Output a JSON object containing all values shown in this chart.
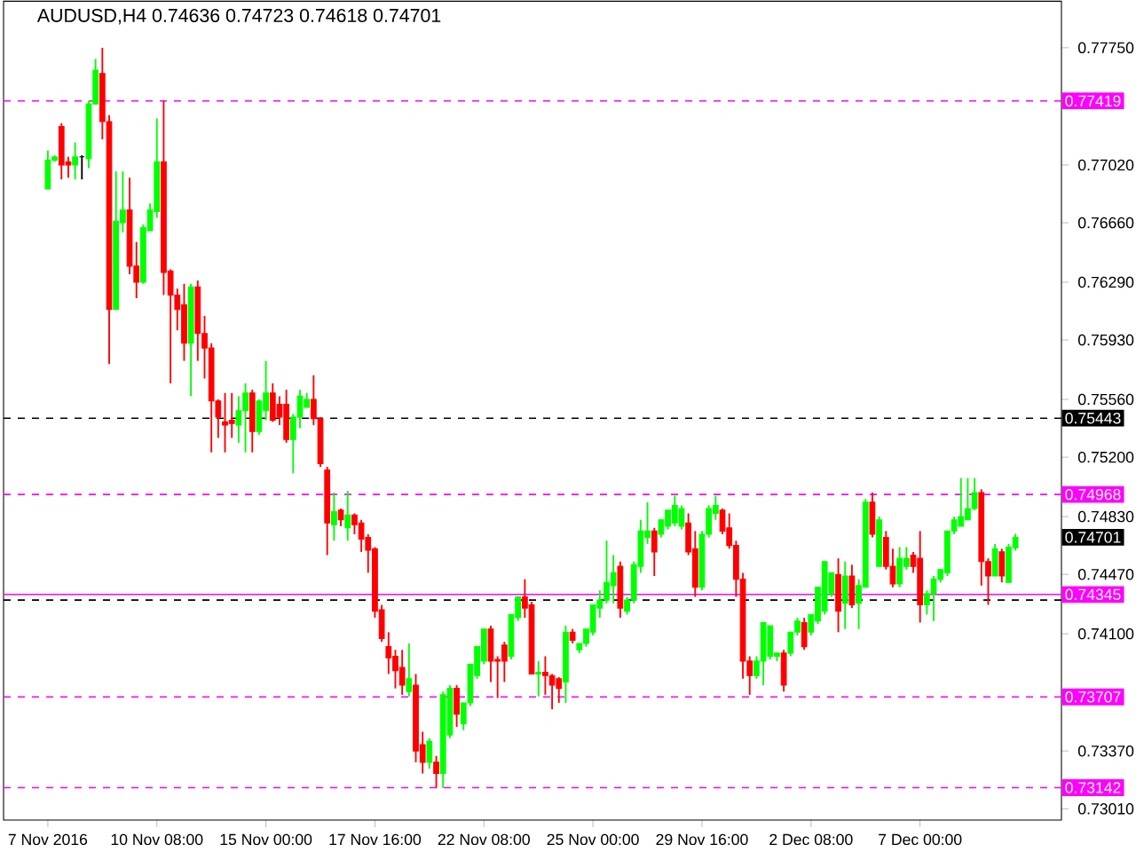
{
  "chart_data": {
    "type": "candlestick",
    "title": "AUDUSD,H4 0.74636 0.74723 0.74618 0.74701",
    "categories": [
      "7 Nov 2016",
      null,
      null,
      null,
      null,
      null,
      null,
      null,
      null,
      null,
      null,
      null,
      null,
      null,
      null,
      null,
      "10 Nov 08:00",
      null,
      null,
      null,
      null,
      null,
      null,
      null,
      null,
      null,
      null,
      null,
      null,
      null,
      null,
      null,
      "15 Nov 00:00",
      null,
      null,
      null,
      null,
      null,
      null,
      null,
      null,
      null,
      null,
      null,
      null,
      null,
      null,
      null,
      "17 Nov 16:00",
      null,
      null,
      null,
      null,
      null,
      null,
      null,
      null,
      null,
      null,
      null,
      null,
      null,
      null,
      null,
      "22 Nov 08:00",
      null,
      null,
      null,
      null,
      null,
      null,
      null,
      null,
      null,
      null,
      null,
      null,
      null,
      null,
      null,
      "25 Nov 00:00",
      null,
      null,
      null,
      null,
      null,
      null,
      null,
      null,
      null,
      null,
      null,
      null,
      null,
      null,
      null,
      "29 Nov 16:00",
      null,
      null,
      null,
      null,
      null,
      null,
      null,
      null,
      null,
      null,
      null,
      null,
      null,
      null,
      null,
      "2 Dec 08:00",
      null,
      null,
      null,
      null,
      null,
      null,
      null,
      null,
      null,
      null,
      null,
      null,
      null,
      null,
      null,
      "7 Dec 00:00",
      null,
      null,
      null,
      null,
      null,
      null,
      null,
      null,
      null,
      null,
      null,
      null,
      null,
      null
    ],
    "ohlc": [
      [
        0.7687,
        0.7711,
        0.7687,
        0.7705
      ],
      [
        0.7705,
        0.7708,
        0.7704,
        0.7707
      ],
      [
        0.7726,
        0.7728,
        0.7693,
        0.7702
      ],
      [
        0.7704,
        0.7707,
        0.7694,
        0.7702
      ],
      [
        0.7702,
        0.7716,
        0.7693,
        0.7707
      ],
      [
        0.7707,
        0.7708,
        0.7693,
        0.7707
      ],
      [
        0.7706,
        0.7742,
        0.77,
        0.774
      ],
      [
        0.774,
        0.7768,
        0.774,
        0.7761
      ],
      [
        0.7759,
        0.7775,
        0.7718,
        0.7729
      ],
      [
        0.7729,
        0.7733,
        0.7578,
        0.7612
      ],
      [
        0.7612,
        0.7698,
        0.7612,
        0.7667
      ],
      [
        0.7666,
        0.7698,
        0.766,
        0.7674
      ],
      [
        0.7674,
        0.7694,
        0.7634,
        0.7639
      ],
      [
        0.7639,
        0.7654,
        0.7619,
        0.7629
      ],
      [
        0.7629,
        0.7665,
        0.7628,
        0.7663
      ],
      [
        0.7661,
        0.7678,
        0.7661,
        0.7674
      ],
      [
        0.7673,
        0.7731,
        0.7669,
        0.7704
      ],
      [
        0.7704,
        0.7742,
        0.7621,
        0.7635
      ],
      [
        0.7636,
        0.7637,
        0.7566,
        0.7621
      ],
      [
        0.7621,
        0.7625,
        0.7599,
        0.7612
      ],
      [
        0.7615,
        0.7628,
        0.758,
        0.7591
      ],
      [
        0.7591,
        0.7628,
        0.7558,
        0.7626
      ],
      [
        0.7626,
        0.763,
        0.758,
        0.7597
      ],
      [
        0.7597,
        0.7608,
        0.7569,
        0.7588
      ],
      [
        0.7588,
        0.7591,
        0.7523,
        0.7555
      ],
      [
        0.7555,
        0.7556,
        0.7532,
        0.7545
      ],
      [
        0.7542,
        0.756,
        0.7523,
        0.754
      ],
      [
        0.7543,
        0.756,
        0.7532,
        0.7541
      ],
      [
        0.754,
        0.7558,
        0.7529,
        0.7549
      ],
      [
        0.7549,
        0.7566,
        0.7523,
        0.756
      ],
      [
        0.756,
        0.7562,
        0.7523,
        0.7536
      ],
      [
        0.7536,
        0.7556,
        0.7534,
        0.7555
      ],
      [
        0.7549,
        0.758,
        0.7543,
        0.756
      ],
      [
        0.756,
        0.7566,
        0.7542,
        0.7543
      ],
      [
        0.7553,
        0.7558,
        0.754,
        0.7545
      ],
      [
        0.7553,
        0.7562,
        0.7529,
        0.7531
      ],
      [
        0.7531,
        0.7547,
        0.751,
        0.7545
      ],
      [
        0.7545,
        0.7562,
        0.7538,
        0.7558
      ],
      [
        0.7551,
        0.756,
        0.7551,
        0.7556
      ],
      [
        0.7556,
        0.7571,
        0.754,
        0.7544
      ],
      [
        0.7544,
        0.7545,
        0.7514,
        0.7516
      ],
      [
        0.7512,
        0.7514,
        0.7459,
        0.7479
      ],
      [
        0.7478,
        0.7498,
        0.7468,
        0.7486
      ],
      [
        0.7487,
        0.7488,
        0.7477,
        0.7481
      ],
      [
        0.7476,
        0.7499,
        0.7468,
        0.7484
      ],
      [
        0.7484,
        0.7485,
        0.7472,
        0.7478
      ],
      [
        0.7479,
        0.7481,
        0.7461,
        0.7469
      ],
      [
        0.747,
        0.7472,
        0.7448,
        0.7462
      ],
      [
        0.7463,
        0.7464,
        0.742,
        0.7424
      ],
      [
        0.7425,
        0.7428,
        0.7405,
        0.7407
      ],
      [
        0.7402,
        0.7411,
        0.7385,
        0.7395
      ],
      [
        0.7396,
        0.74,
        0.7376,
        0.7387
      ],
      [
        0.7389,
        0.74,
        0.7372,
        0.7378
      ],
      [
        0.7374,
        0.7404,
        0.7371,
        0.7382
      ],
      [
        0.7378,
        0.7385,
        0.733,
        0.7337
      ],
      [
        0.7341,
        0.7349,
        0.7323,
        0.733
      ],
      [
        0.733,
        0.7345,
        0.7326,
        0.7343
      ],
      [
        0.733,
        0.7334,
        0.7314,
        0.7323
      ],
      [
        0.7323,
        0.7374,
        0.7314,
        0.7372
      ],
      [
        0.7347,
        0.7378,
        0.7345,
        0.7376
      ],
      [
        0.7376,
        0.7378,
        0.7352,
        0.736
      ],
      [
        0.7354,
        0.7367,
        0.735,
        0.7367
      ],
      [
        0.7367,
        0.7391,
        0.7365,
        0.7391
      ],
      [
        0.7384,
        0.7402,
        0.7382,
        0.7402
      ],
      [
        0.7393,
        0.7413,
        0.7391,
        0.7413
      ],
      [
        0.7413,
        0.7415,
        0.738,
        0.7393
      ],
      [
        0.7394,
        0.7396,
        0.737,
        0.7393
      ],
      [
        0.7403,
        0.7405,
        0.738,
        0.7393
      ],
      [
        0.7396,
        0.7422,
        0.7394,
        0.7422
      ],
      [
        0.742,
        0.7433,
        0.7418,
        0.7433
      ],
      [
        0.7433,
        0.7444,
        0.742,
        0.7426
      ],
      [
        0.7428,
        0.743,
        0.7385,
        0.7385
      ],
      [
        0.7385,
        0.7393,
        0.7371,
        0.7386
      ],
      [
        0.7386,
        0.7396,
        0.7372,
        0.7384
      ],
      [
        0.7384,
        0.7385,
        0.7363,
        0.7378
      ],
      [
        0.7382,
        0.7383,
        0.7367,
        0.7376
      ],
      [
        0.738,
        0.7415,
        0.7367,
        0.7411
      ],
      [
        0.7411,
        0.7413,
        0.7404,
        0.7406
      ],
      [
        0.74,
        0.7404,
        0.7398,
        0.7404
      ],
      [
        0.7404,
        0.7413,
        0.7402,
        0.7413
      ],
      [
        0.7411,
        0.7428,
        0.7409,
        0.7428
      ],
      [
        0.7426,
        0.7437,
        0.742,
        0.7431
      ],
      [
        0.7431,
        0.7468,
        0.7429,
        0.7442
      ],
      [
        0.744,
        0.7459,
        0.7429,
        0.7448
      ],
      [
        0.7452,
        0.7455,
        0.742,
        0.7426
      ],
      [
        0.7424,
        0.7433,
        0.7422,
        0.7431
      ],
      [
        0.7431,
        0.7455,
        0.7429,
        0.7453
      ],
      [
        0.7452,
        0.7481,
        0.7448,
        0.7474
      ],
      [
        0.747,
        0.7492,
        0.7466,
        0.7474
      ],
      [
        0.7474,
        0.7476,
        0.7446,
        0.7461
      ],
      [
        0.7472,
        0.7481,
        0.747,
        0.7481
      ],
      [
        0.7477,
        0.7487,
        0.7475,
        0.7487
      ],
      [
        0.7479,
        0.7496,
        0.7477,
        0.749
      ],
      [
        0.7477,
        0.749,
        0.7475,
        0.7488
      ],
      [
        0.7479,
        0.7485,
        0.7459,
        0.7461
      ],
      [
        0.7463,
        0.7474,
        0.7433,
        0.7439
      ],
      [
        0.7439,
        0.7474,
        0.7437,
        0.7472
      ],
      [
        0.7472,
        0.749,
        0.747,
        0.7488
      ],
      [
        0.7485,
        0.7496,
        0.7481,
        0.749
      ],
      [
        0.7487,
        0.7488,
        0.7472,
        0.7474
      ],
      [
        0.7476,
        0.7485,
        0.7463,
        0.7465
      ],
      [
        0.7465,
        0.7468,
        0.7433,
        0.7444
      ],
      [
        0.7444,
        0.7448,
        0.7382,
        0.7393
      ],
      [
        0.7393,
        0.7396,
        0.7372,
        0.7384
      ],
      [
        0.7384,
        0.7396,
        0.7382,
        0.7393
      ],
      [
        0.7393,
        0.7417,
        0.7378,
        0.7417
      ],
      [
        0.7396,
        0.7415,
        0.7394,
        0.7415
      ],
      [
        0.7396,
        0.7398,
        0.7393,
        0.7398
      ],
      [
        0.7398,
        0.74,
        0.7374,
        0.7378
      ],
      [
        0.7398,
        0.7411,
        0.7396,
        0.7411
      ],
      [
        0.7411,
        0.742,
        0.7409,
        0.7418
      ],
      [
        0.7417,
        0.742,
        0.74,
        0.7402
      ],
      [
        0.7411,
        0.7422,
        0.7409,
        0.7422
      ],
      [
        0.7418,
        0.7439,
        0.7416,
        0.7439
      ],
      [
        0.7424,
        0.7455,
        0.7422,
        0.7455
      ],
      [
        0.7435,
        0.7448,
        0.7433,
        0.7448
      ],
      [
        0.7447,
        0.7457,
        0.7411,
        0.7424
      ],
      [
        0.7429,
        0.7455,
        0.7413,
        0.7446
      ],
      [
        0.7446,
        0.7453,
        0.7426,
        0.7428
      ],
      [
        0.7429,
        0.7444,
        0.7413,
        0.744
      ],
      [
        0.7439,
        0.7494,
        0.7439,
        0.7492
      ],
      [
        0.7492,
        0.7498,
        0.747,
        0.7472
      ],
      [
        0.7452,
        0.7483,
        0.7452,
        0.7481
      ],
      [
        0.747,
        0.7474,
        0.745,
        0.7452
      ],
      [
        0.7452,
        0.7463,
        0.7439,
        0.7441
      ],
      [
        0.7441,
        0.7464,
        0.7439,
        0.7457
      ],
      [
        0.7452,
        0.7464,
        0.745,
        0.7457
      ],
      [
        0.7459,
        0.7461,
        0.7448,
        0.7452
      ],
      [
        0.7457,
        0.7474,
        0.7417,
        0.7428
      ],
      [
        0.7428,
        0.7437,
        0.7422,
        0.7435
      ],
      [
        0.7435,
        0.7446,
        0.7418,
        0.7444
      ],
      [
        0.7444,
        0.745,
        0.7442,
        0.745
      ],
      [
        0.7448,
        0.7474,
        0.7446,
        0.7474
      ],
      [
        0.7474,
        0.7483,
        0.7472,
        0.7481
      ],
      [
        0.7477,
        0.7507,
        0.7477,
        0.7483
      ],
      [
        0.7481,
        0.7507,
        0.7481,
        0.7488
      ],
      [
        0.7488,
        0.7507,
        0.7487,
        0.7498
      ],
      [
        0.7498,
        0.75,
        0.744,
        0.7455
      ],
      [
        0.7455,
        0.7457,
        0.7428,
        0.7446
      ],
      [
        0.7446,
        0.7466,
        0.7446,
        0.7463
      ],
      [
        0.7461,
        0.7463,
        0.7442,
        0.7446
      ],
      [
        0.7442,
        0.7466,
        0.7442,
        0.7464
      ],
      [
        0.74636,
        0.74723,
        0.74618,
        0.74701
      ]
    ],
    "ylim": [
      0.7294,
      0.7804
    ],
    "yticks": [
      {
        "value": 0.7775,
        "label": "0.77750"
      },
      {
        "value": 0.7702,
        "label": "0.77020"
      },
      {
        "value": 0.7666,
        "label": "0.76660"
      },
      {
        "value": 0.7629,
        "label": "0.76290"
      },
      {
        "value": 0.7593,
        "label": "0.75930"
      },
      {
        "value": 0.7556,
        "label": "0.75560"
      },
      {
        "value": 0.752,
        "label": "0.75200"
      },
      {
        "value": 0.7483,
        "label": "0.74830"
      },
      {
        "value": 0.7447,
        "label": "0.74470"
      },
      {
        "value": 0.741,
        "label": "0.74100"
      },
      {
        "value": 0.7337,
        "label": "0.73370"
      },
      {
        "value": 0.7301,
        "label": "0.73010"
      }
    ],
    "annotations": [
      "0.74701"
    ],
    "ref_lines": [
      {
        "axis": "y",
        "value": 0.77419,
        "label": "0.77419",
        "color": "#ff00ff",
        "line_style": "dashed"
      },
      {
        "axis": "y",
        "value": 0.75443,
        "label": "0.75443",
        "color": "#000000",
        "line_style": "dashed"
      },
      {
        "axis": "y",
        "value": 0.74968,
        "label": "0.74968",
        "color": "#ff00ff",
        "line_style": "dashed"
      },
      {
        "axis": "y",
        "value": 0.7431,
        "color": "#000000",
        "line_style": "dashed"
      },
      {
        "axis": "y",
        "value": 0.74345,
        "label": "0.74345",
        "color": "#ff00ff",
        "line_style": "solid"
      },
      {
        "axis": "y",
        "value": 0.73707,
        "label": "0.73707",
        "color": "#ff00ff",
        "line_style": "dashed"
      },
      {
        "axis": "y",
        "value": 0.73142,
        "label": "0.73142",
        "color": "#ff00ff",
        "line_style": "dashed"
      }
    ]
  }
}
